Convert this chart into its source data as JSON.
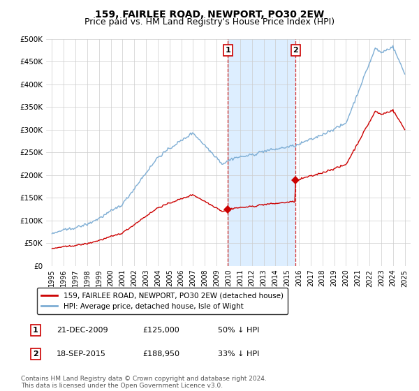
{
  "title": "159, FAIRLEE ROAD, NEWPORT, PO30 2EW",
  "subtitle": "Price paid vs. HM Land Registry's House Price Index (HPI)",
  "ylim": [
    0,
    500000
  ],
  "yticks": [
    0,
    50000,
    100000,
    150000,
    200000,
    250000,
    300000,
    350000,
    400000,
    450000,
    500000
  ],
  "xlim_start": 1994.5,
  "xlim_end": 2025.5,
  "sale1_x": 2009.97,
  "sale1_y": 125000,
  "sale2_x": 2015.72,
  "sale2_y": 188950,
  "vline_color": "#cc0000",
  "hpi_color": "#7dadd4",
  "sale_color": "#cc0000",
  "span_color": "#ddeeff",
  "legend_entries": [
    "159, FAIRLEE ROAD, NEWPORT, PO30 2EW (detached house)",
    "HPI: Average price, detached house, Isle of Wight"
  ],
  "table_rows": [
    {
      "num": "1",
      "date": "21-DEC-2009",
      "price": "£125,000",
      "pct": "50% ↓ HPI"
    },
    {
      "num": "2",
      "date": "18-SEP-2015",
      "price": "£188,950",
      "pct": "33% ↓ HPI"
    }
  ],
  "footnote": "Contains HM Land Registry data © Crown copyright and database right 2024.\nThis data is licensed under the Open Government Licence v3.0.",
  "title_fontsize": 10,
  "subtitle_fontsize": 9
}
